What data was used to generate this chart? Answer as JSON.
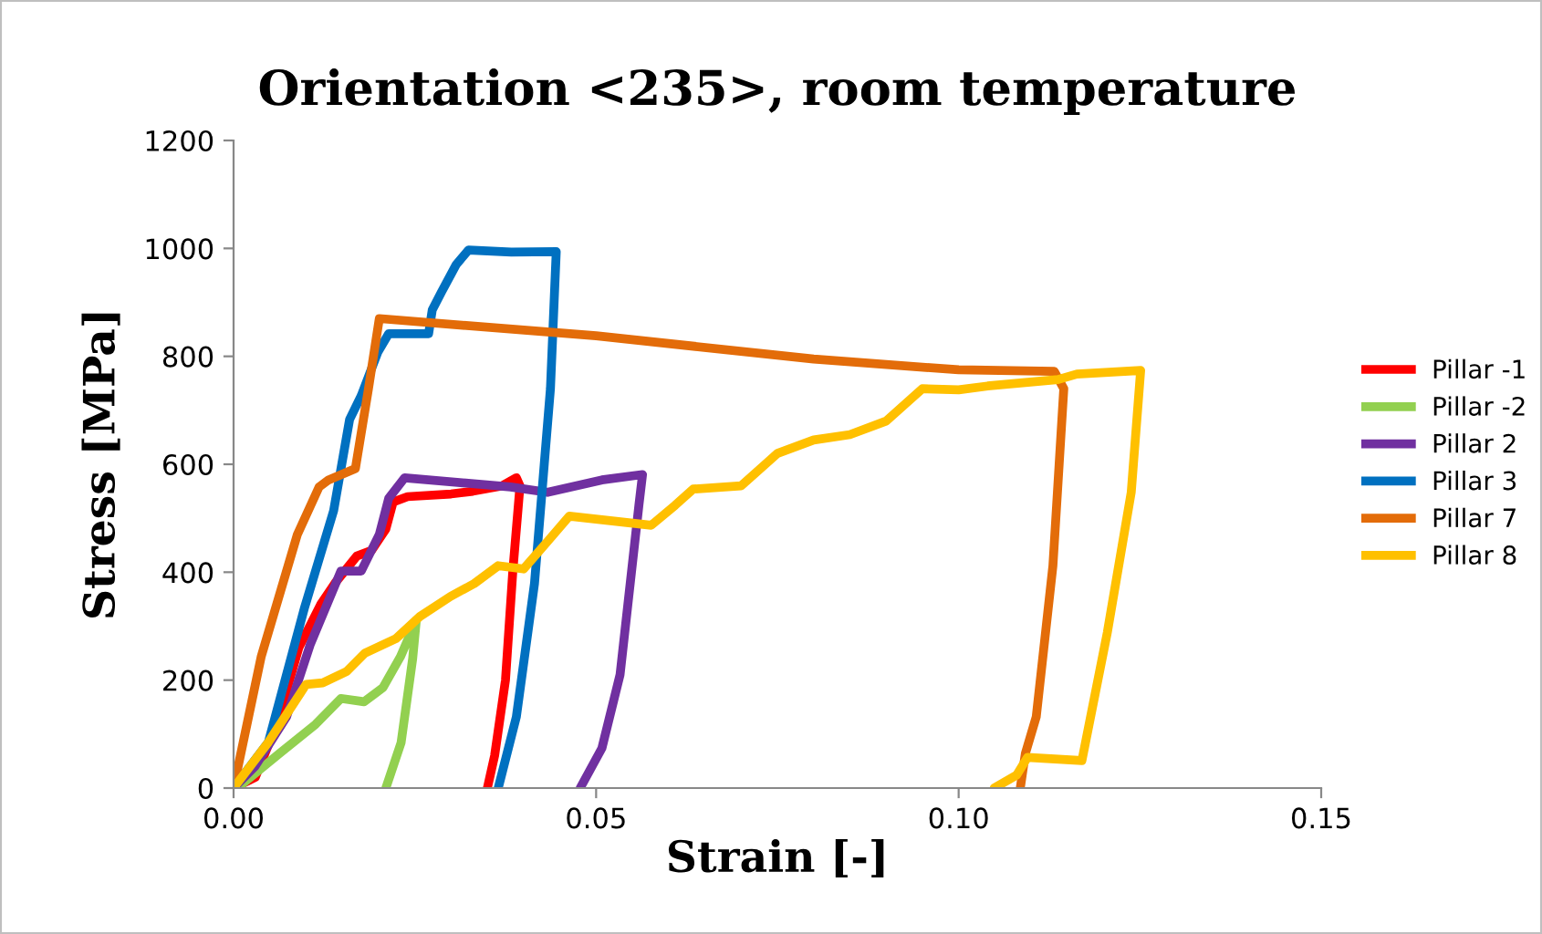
{
  "chart_data": {
    "type": "line",
    "title": "Orientation <235>, room temperature",
    "xlabel": "Strain [-]",
    "ylabel": "Stress [MPa]",
    "xlim": [
      0,
      0.15
    ],
    "xticks": [
      {
        "value": 0,
        "label": "0.00"
      },
      {
        "value": 0.05,
        "label": "0.05"
      },
      {
        "value": 0.1,
        "label": "0.10"
      },
      {
        "value": 0.15,
        "label": "0.15"
      }
    ],
    "ylim": [
      0,
      1200
    ],
    "yticks": [
      0,
      200,
      400,
      600,
      800,
      1000,
      1200
    ],
    "grid": false,
    "legend": "right",
    "marker": "none",
    "line_style": "solid",
    "series": [
      {
        "name": "Pillar -1",
        "color": "#ff0000",
        "x": [
          0,
          0.003,
          0.006,
          0.009,
          0.012,
          0.014,
          0.017,
          0.019,
          0.021,
          0.022,
          0.024,
          0.03,
          0.033,
          0.037,
          0.039,
          0.0395,
          0.0385,
          0.0375,
          0.036,
          0.035
        ],
        "values": [
          0,
          20,
          120,
          260,
          340,
          380,
          430,
          440,
          480,
          530,
          540,
          545,
          550,
          560,
          575,
          560,
          400,
          200,
          60,
          0
        ]
      },
      {
        "name": "Pillar -2",
        "color": "#92d050",
        "x": [
          0,
          0.0005,
          0.0063,
          0.0113,
          0.0148,
          0.018,
          0.0206,
          0.023,
          0.0252,
          0.0247,
          0.0231,
          0.021
        ],
        "values": [
          0,
          0,
          64,
          118,
          166,
          160,
          186,
          243,
          311,
          240,
          84,
          0
        ]
      },
      {
        "name": "Pillar 2",
        "color": "#7030a0",
        "x": [
          0,
          0.003,
          0.0073,
          0.0106,
          0.0148,
          0.0176,
          0.0201,
          0.0214,
          0.0236,
          0.0382,
          0.0433,
          0.0508,
          0.0564,
          0.0559,
          0.0533,
          0.0508,
          0.0478
        ],
        "values": [
          0,
          41,
          132,
          267,
          402,
          402,
          470,
          537,
          575,
          558,
          548,
          571,
          581,
          524,
          210,
          74,
          0
        ]
      },
      {
        "name": "Pillar 3",
        "color": "#0070c0",
        "x": [
          0,
          0.0048,
          0.0098,
          0.0138,
          0.016,
          0.0176,
          0.0199,
          0.0214,
          0.0269,
          0.0274,
          0.0287,
          0.0307,
          0.0324,
          0.0383,
          0.0445,
          0.0437,
          0.0415,
          0.039,
          0.0365
        ],
        "values": [
          0,
          85,
          335,
          514,
          683,
          727,
          808,
          842,
          842,
          886,
          920,
          970,
          997,
          993,
          994,
          740,
          379,
          132,
          0
        ]
      },
      {
        "name": "Pillar 7",
        "color": "#e36c09",
        "x": [
          0,
          0.0038,
          0.0088,
          0.0118,
          0.0131,
          0.0168,
          0.0186,
          0.0201,
          0.05,
          0.08,
          0.1,
          0.1132,
          0.1145,
          0.113,
          0.1107,
          0.1092,
          0.1085
        ],
        "values": [
          0,
          243,
          470,
          558,
          571,
          592,
          740,
          870,
          838,
          795,
          775,
          772,
          740,
          412,
          132,
          64,
          0
        ]
      },
      {
        "name": "Pillar 8",
        "color": "#ffc000",
        "x": [
          0,
          0.0048,
          0.01,
          0.0123,
          0.0156,
          0.0181,
          0.0224,
          0.0257,
          0.0299,
          0.0332,
          0.0365,
          0.04,
          0.0433,
          0.0463,
          0.0576,
          0.0609,
          0.0634,
          0.07,
          0.075,
          0.08,
          0.085,
          0.09,
          0.095,
          0.1,
          0.104,
          0.1137,
          0.1163,
          0.1251,
          0.1238,
          0.1205,
          0.117,
          0.1095,
          0.108,
          0.1049
        ],
        "values": [
          0,
          85,
          192,
          195,
          216,
          250,
          277,
          318,
          355,
          379,
          412,
          406,
          457,
          504,
          487,
          524,
          554,
          560,
          620,
          645,
          655,
          680,
          740,
          738,
          745,
          757,
          767,
          774,
          548,
          288,
          51,
          57,
          24,
          0
        ]
      }
    ]
  }
}
